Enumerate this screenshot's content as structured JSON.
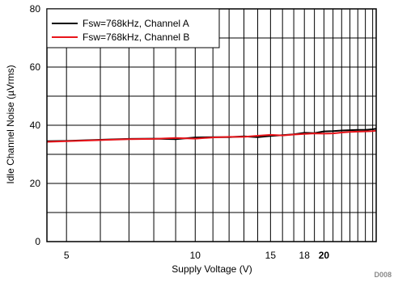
{
  "chart_data": {
    "type": "line",
    "title": "",
    "xlabel": "Supply Voltage (V)",
    "ylabel": "Idle Channel Noise (µVrms)",
    "xlim": [
      4.5,
      26.5
    ],
    "ylim": [
      0,
      80
    ],
    "x_ticks": [
      {
        "value": 5,
        "label": "5",
        "bold": false
      },
      {
        "value": 10,
        "label": "10",
        "bold": false
      },
      {
        "value": 15,
        "label": "15",
        "bold": false
      },
      {
        "value": 18,
        "label": "18",
        "bold": false
      },
      {
        "value": 20,
        "label": "20",
        "bold": true
      }
    ],
    "y_ticks": [
      0,
      20,
      40,
      60,
      80
    ],
    "grid": true,
    "legend": "top-left",
    "series": [
      {
        "name": "Fsw=768kHz, Channel A",
        "color": "#000000",
        "x": [
          4.5,
          5,
          6,
          7,
          8,
          9,
          10,
          11,
          12,
          13,
          14,
          15,
          16,
          17,
          18,
          19,
          20,
          21,
          22,
          23,
          24,
          25,
          26,
          26.5
        ],
        "y": [
          34.5,
          34.6,
          35,
          35.3,
          35.4,
          35.2,
          35.8,
          35.9,
          35.9,
          36.2,
          35.9,
          36.3,
          36.6,
          36.9,
          37.4,
          37.3,
          37.9,
          38,
          38.2,
          38.3,
          38.4,
          38.4,
          38.6,
          38.8
        ]
      },
      {
        "name": "Fsw=768kHz, Channel B",
        "color": "#e8141a",
        "x": [
          4.5,
          5,
          6,
          7,
          8,
          9,
          10,
          11,
          12,
          13,
          14,
          15,
          16,
          17,
          18,
          19,
          20,
          21,
          22,
          23,
          24,
          25,
          26,
          26.5
        ],
        "y": [
          34.3,
          34.5,
          34.9,
          35.2,
          35.3,
          35.6,
          35.4,
          35.8,
          36,
          36,
          36.4,
          36.7,
          36.5,
          36.8,
          37,
          37.2,
          37.1,
          37.2,
          37.5,
          37.7,
          37.8,
          37.9,
          38,
          38.1
        ]
      }
    ]
  },
  "figure_code": "D008"
}
